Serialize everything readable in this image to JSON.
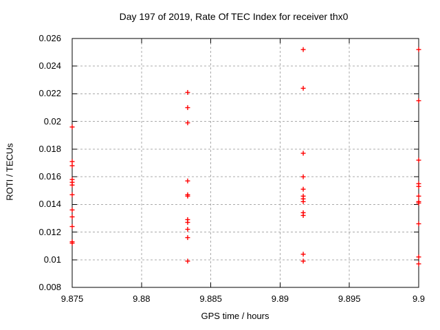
{
  "chart_data": {
    "type": "scatter",
    "title": "Day 197 of 2019, Rate Of TEC Index for receiver thx0",
    "xlabel": "GPS time / hours",
    "ylabel": "ROTI / TECUs",
    "xlim": [
      9.875,
      9.9
    ],
    "ylim": [
      0.008,
      0.026
    ],
    "xticks": {
      "values": [
        9.875,
        9.88,
        9.885,
        9.89,
        9.895,
        9.9
      ],
      "labels": [
        "9.875",
        "9.88",
        "9.885",
        "9.89",
        "9.895",
        "9.9"
      ]
    },
    "yticks": {
      "values": [
        0.008,
        0.01,
        0.012,
        0.014,
        0.016,
        0.018,
        0.02,
        0.022,
        0.024,
        0.026
      ],
      "labels": [
        "0.008",
        "0.01",
        "0.012",
        "0.014",
        "0.016",
        "0.018",
        "0.02",
        "0.022",
        "0.024",
        "0.026"
      ]
    },
    "grid": true,
    "legend": "none",
    "marker": {
      "shape": "plus",
      "size": 7,
      "stroke_width": 1.4
    },
    "colors": {
      "marker": "#ff0000",
      "grid": "#a8a8a8",
      "axis": "#000000",
      "background": "#ffffff"
    },
    "series": [
      {
        "name": "roti",
        "points": [
          [
            9.875,
            0.0196
          ],
          [
            9.875,
            0.0171
          ],
          [
            9.875,
            0.0168
          ],
          [
            9.875,
            0.0158
          ],
          [
            9.875,
            0.0156
          ],
          [
            9.875,
            0.0154
          ],
          [
            9.875,
            0.0147
          ],
          [
            9.875,
            0.0136
          ],
          [
            9.875,
            0.0131
          ],
          [
            9.875,
            0.0124
          ],
          [
            9.875,
            0.0113
          ],
          [
            9.875,
            0.0112
          ],
          [
            9.88333,
            0.0221
          ],
          [
            9.88333,
            0.021
          ],
          [
            9.88333,
            0.0199
          ],
          [
            9.88333,
            0.0157
          ],
          [
            9.88333,
            0.0147
          ],
          [
            9.88333,
            0.0146
          ],
          [
            9.88333,
            0.0129
          ],
          [
            9.88333,
            0.0127
          ],
          [
            9.88333,
            0.0122
          ],
          [
            9.88333,
            0.0116
          ],
          [
            9.88333,
            0.0099
          ],
          [
            9.89167,
            0.0252
          ],
          [
            9.89167,
            0.0224
          ],
          [
            9.89167,
            0.0177
          ],
          [
            9.89167,
            0.016
          ],
          [
            9.89167,
            0.0151
          ],
          [
            9.89167,
            0.0146
          ],
          [
            9.89167,
            0.0144
          ],
          [
            9.89167,
            0.0142
          ],
          [
            9.89167,
            0.0134
          ],
          [
            9.89167,
            0.0132
          ],
          [
            9.89167,
            0.0104
          ],
          [
            9.89167,
            0.0099
          ],
          [
            9.9,
            0.0252
          ],
          [
            9.9,
            0.0215
          ],
          [
            9.9,
            0.0172
          ],
          [
            9.9,
            0.0155
          ],
          [
            9.9,
            0.0153
          ],
          [
            9.9,
            0.0146
          ],
          [
            9.9,
            0.0142
          ],
          [
            9.9,
            0.0141
          ],
          [
            9.9,
            0.0126
          ],
          [
            9.9,
            0.0102
          ],
          [
            9.9,
            0.0097
          ]
        ]
      }
    ]
  }
}
